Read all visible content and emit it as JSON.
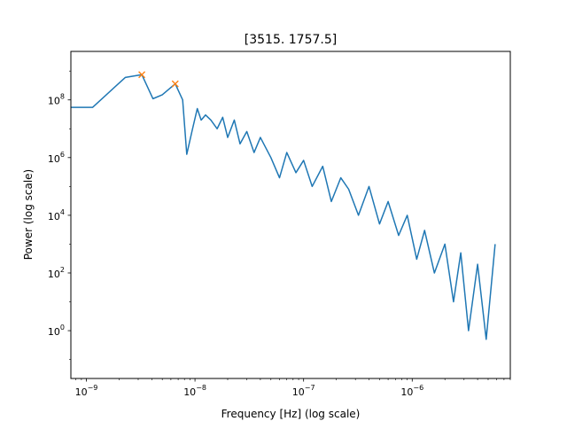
{
  "chart_data": {
    "type": "line",
    "title": "[3515.  1757.5]",
    "xlabel": "Frequency [Hz] (log scale)",
    "ylabel": "Power (log scale)",
    "xscale": "log",
    "yscale": "log",
    "xlim": [
      7.2e-10,
      8e-06
    ],
    "ylim": [
      0.022,
      4800000000.0
    ],
    "grid": false,
    "legend": "none",
    "x_ticks": [
      {
        "mantissa": "10",
        "exp": "−9"
      },
      {
        "mantissa": "10",
        "exp": "−8"
      },
      {
        "mantissa": "10",
        "exp": "−7"
      },
      {
        "mantissa": "10",
        "exp": "−6"
      }
    ],
    "y_ticks": [
      {
        "mantissa": "10",
        "exp": "0"
      },
      {
        "mantissa": "10",
        "exp": "2"
      },
      {
        "mantissa": "10",
        "exp": "4"
      },
      {
        "mantissa": "10",
        "exp": "6"
      },
      {
        "mantissa": "10",
        "exp": "8"
      }
    ],
    "x_tick_values": [
      1e-09,
      1e-08,
      1e-07,
      1e-06
    ],
    "y_tick_values": [
      1,
      100,
      10000,
      1000000,
      100000000
    ],
    "series": [
      {
        "color": "#1f77b4",
        "x": [
          7.2e-10,
          1.14e-09,
          2.28e-09,
          3.24e-09,
          4.1e-09,
          5e-09,
          6.58e-09,
          7.7e-09,
          8.4e-09,
          9.5e-09,
          1.05e-08,
          1.14e-08,
          1.25e-08,
          1.4e-08,
          1.6e-08,
          1.8e-08,
          2e-08,
          2.3e-08,
          2.6e-08,
          3e-08,
          3.5e-08,
          4e-08,
          5e-08,
          6e-08,
          7e-08,
          8.5e-08,
          1e-07,
          1.2e-07,
          1.5e-07,
          1.8e-07,
          2.2e-07,
          2.6e-07,
          3.2e-07,
          4e-07,
          5e-07,
          6e-07,
          7.5e-07,
          9e-07,
          1.1e-06,
          1.3e-06,
          1.6e-06,
          2e-06,
          2.4e-06,
          2.8e-06,
          3.3e-06,
          4e-06,
          4.8e-06,
          5.8e-06
        ],
        "y": [
          55000000.0,
          55000000.0,
          600000000.0,
          750000000.0,
          110000000.0,
          150000000.0,
          360000000.0,
          100000000.0,
          1300000.0,
          10000000.0,
          50000000.0,
          20000000.0,
          30000000.0,
          20000000.0,
          10000000.0,
          25000000.0,
          5000000.0,
          20000000.0,
          3000000.0,
          8000000.0,
          1500000.0,
          5000000.0,
          1000000.0,
          200000.0,
          1500000.0,
          300000.0,
          800000.0,
          100000.0,
          500000.0,
          30000.0,
          200000.0,
          80000.0,
          10000.0,
          100000.0,
          5000.0,
          30000.0,
          2000.0,
          10000.0,
          300,
          3000,
          100,
          1000,
          10,
          500,
          1,
          200,
          0.5,
          1000
        ]
      }
    ],
    "peaks": {
      "color": "#ff7f0e",
      "marker": "x",
      "x": [
        3.24e-09,
        6.58e-09
      ],
      "y": [
        750000000.0,
        360000000.0
      ]
    }
  }
}
